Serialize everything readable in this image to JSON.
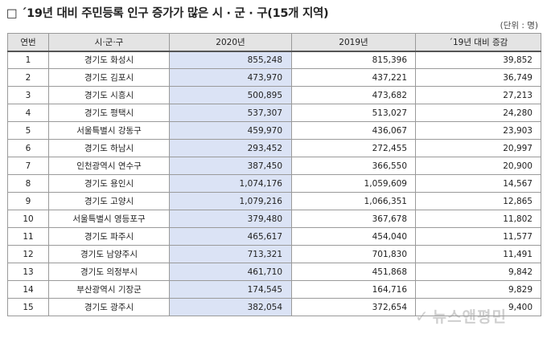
{
  "title": "□ ´19년 대비 주민등록 인구 증가가 많은 시 · 군 · 구(15개 지역)",
  "unit": "(단위 : 명)",
  "headers": [
    "연번",
    "시·군·구",
    "2020년",
    "2019년",
    "´19년 대비 증감"
  ],
  "rows": [
    {
      "no": "1",
      "region": "경기도 화성시",
      "y2020": "855,248",
      "y2019": "815,396",
      "diff": "39,852"
    },
    {
      "no": "2",
      "region": "경기도 김포시",
      "y2020": "473,970",
      "y2019": "437,221",
      "diff": "36,749"
    },
    {
      "no": "3",
      "region": "경기도 시흥시",
      "y2020": "500,895",
      "y2019": "473,682",
      "diff": "27,213"
    },
    {
      "no": "4",
      "region": "경기도 평택시",
      "y2020": "537,307",
      "y2019": "513,027",
      "diff": "24,280"
    },
    {
      "no": "5",
      "region": "서울특별시 강동구",
      "y2020": "459,970",
      "y2019": "436,067",
      "diff": "23,903"
    },
    {
      "no": "6",
      "region": "경기도 하남시",
      "y2020": "293,452",
      "y2019": "272,455",
      "diff": "20,997"
    },
    {
      "no": "7",
      "region": "인천광역시 연수구",
      "y2020": "387,450",
      "y2019": "366,550",
      "diff": "20,900"
    },
    {
      "no": "8",
      "region": "경기도 용인시",
      "y2020": "1,074,176",
      "y2019": "1,059,609",
      "diff": "14,567"
    },
    {
      "no": "9",
      "region": "경기도 고양시",
      "y2020": "1,079,216",
      "y2019": "1,066,351",
      "diff": "12,865"
    },
    {
      "no": "10",
      "region": "서울특별시 영등포구",
      "y2020": "379,480",
      "y2019": "367,678",
      "diff": "11,802"
    },
    {
      "no": "11",
      "region": "경기도 파주시",
      "y2020": "465,617",
      "y2019": "454,040",
      "diff": "11,577"
    },
    {
      "no": "12",
      "region": "경기도 남양주시",
      "y2020": "713,321",
      "y2019": "701,830",
      "diff": "11,491"
    },
    {
      "no": "13",
      "region": "경기도 의정부시",
      "y2020": "461,710",
      "y2019": "451,868",
      "diff": "9,842"
    },
    {
      "no": "14",
      "region": "부산광역시 기장군",
      "y2020": "174,545",
      "y2019": "164,716",
      "diff": "9,829"
    },
    {
      "no": "15",
      "region": "경기도 광주시",
      "y2020": "382,054",
      "y2019": "372,654",
      "diff": "9,400"
    }
  ],
  "watermark": "뉴스앤평민",
  "colors": {
    "highlight_column": "#dbe3f5",
    "header_bg": "#e4e4e4"
  }
}
